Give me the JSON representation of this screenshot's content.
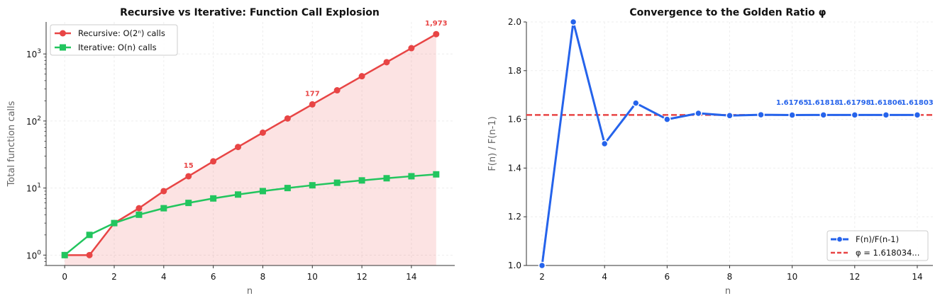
{
  "chart_data": [
    {
      "type": "line",
      "title": "Recursive vs Iterative: Function Call Explosion",
      "xlabel": "n",
      "ylabel": "Total function calls",
      "yscale": "log",
      "xlim": [
        -0.75,
        15.75
      ],
      "ylim": [
        0.7,
        3000
      ],
      "grid": true,
      "legend_position": "top-left",
      "x": [
        0,
        1,
        2,
        3,
        4,
        5,
        6,
        7,
        8,
        9,
        10,
        11,
        12,
        13,
        14,
        15
      ],
      "x_ticks": [
        0,
        2,
        4,
        6,
        8,
        10,
        12,
        14
      ],
      "y_ticks": [
        {
          "value": 1,
          "base": "10",
          "exp": "0"
        },
        {
          "value": 10,
          "base": "10",
          "exp": "1"
        },
        {
          "value": 100,
          "base": "10",
          "exp": "2"
        },
        {
          "value": 1000,
          "base": "10",
          "exp": "3"
        }
      ],
      "series": [
        {
          "name": "Recursive: O(2ⁿ) calls",
          "color": "#e84545",
          "marker": "circle",
          "fill": true,
          "values": [
            1,
            1,
            3,
            5,
            9,
            15,
            25,
            41,
            67,
            109,
            177,
            287,
            465,
            753,
            1219,
            1973
          ]
        },
        {
          "name": "Iterative: O(n) calls",
          "color": "#22c55e",
          "marker": "square",
          "values": [
            1,
            2,
            3,
            4,
            5,
            6,
            7,
            8,
            9,
            10,
            11,
            12,
            13,
            14,
            15,
            16
          ]
        }
      ],
      "annotations": [
        {
          "x": 5,
          "y": 15,
          "text": "15"
        },
        {
          "x": 10,
          "y": 177,
          "text": "177"
        },
        {
          "x": 15,
          "y": 1973,
          "text": "1,973"
        }
      ]
    },
    {
      "type": "line",
      "title": "Convergence to the Golden Ratio φ",
      "xlabel": "n",
      "ylabel": "F(n) / F(n-1)",
      "xlim": [
        1.5,
        14.5
      ],
      "ylim": [
        1.0,
        2.0
      ],
      "grid": true,
      "legend_position": "bottom-right",
      "x": [
        2,
        3,
        4,
        5,
        6,
        7,
        8,
        9,
        10,
        11,
        12,
        13,
        14
      ],
      "x_ticks": [
        2,
        4,
        6,
        8,
        10,
        12,
        14
      ],
      "y_ticks": [
        "1.0",
        "1.2",
        "1.4",
        "1.6",
        "1.8",
        "2.0"
      ],
      "series": [
        {
          "name": "F(n)/F(n-1)",
          "color": "#2563eb",
          "marker": "circle",
          "values": [
            1.0,
            2.0,
            1.5,
            1.6667,
            1.6,
            1.625,
            1.6154,
            1.619,
            1.6176,
            1.6182,
            1.618,
            1.6181,
            1.618
          ]
        }
      ],
      "reference_line": {
        "name": "φ = 1.618034...",
        "value": 1.618034,
        "color": "#e84545",
        "style": "dashed"
      },
      "annotations": [
        {
          "x": 10,
          "text": "1.61765"
        },
        {
          "x": 11,
          "text": "1.61818"
        },
        {
          "x": 12,
          "text": "1.61798"
        },
        {
          "x": 13,
          "text": "1.61806"
        },
        {
          "x": 14,
          "text": "1.61803"
        }
      ]
    }
  ]
}
